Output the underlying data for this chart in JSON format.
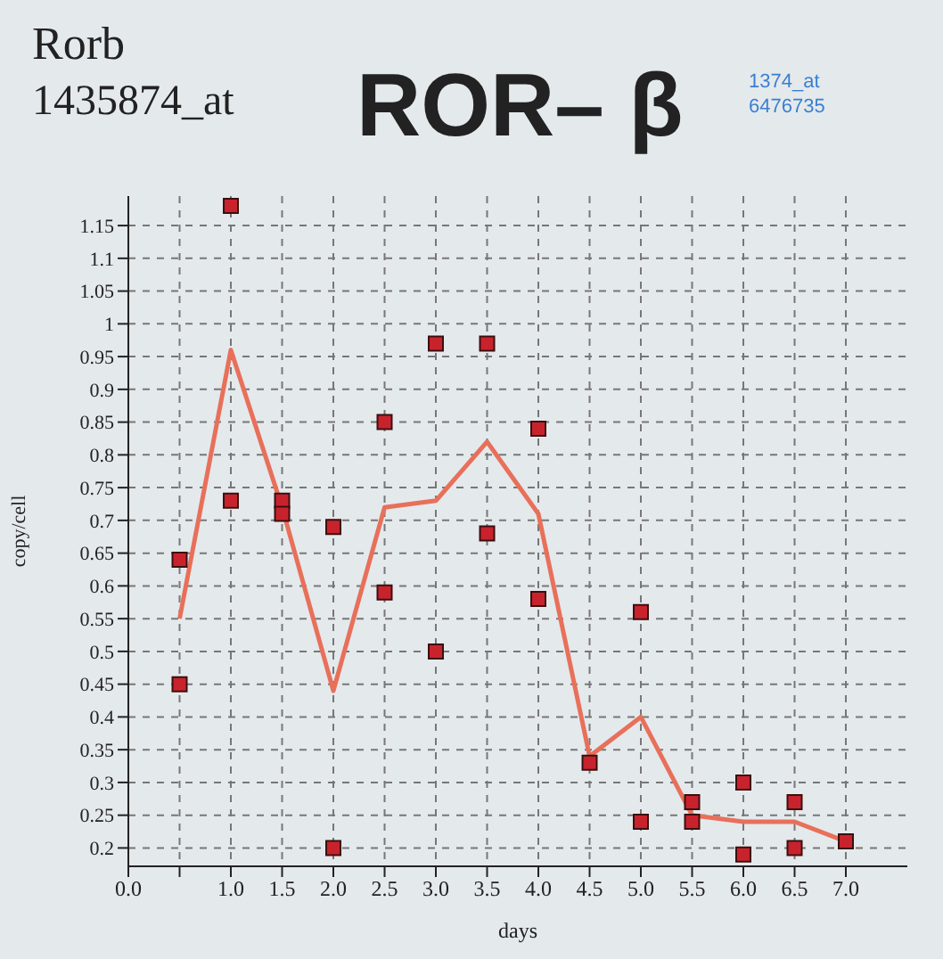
{
  "chart_data": {
    "type": "scatter",
    "title": "ROR– β",
    "subtitle": "Rorb",
    "annotations": [
      "1435874_at",
      "1374_at",
      "6476735"
    ],
    "xlabel": "days",
    "ylabel": "copy/cell",
    "xlim": [
      0,
      7.6
    ],
    "xticks": [
      {
        "value": 0,
        "label": "0.0"
      },
      {
        "value": 0.5,
        "label": null
      },
      {
        "value": 1,
        "label": "1.0"
      },
      {
        "value": 1.5,
        "label": "1.5"
      },
      {
        "value": 2,
        "label": "2.0"
      },
      {
        "value": 2.5,
        "label": "2.5"
      },
      {
        "value": 3,
        "label": "3.0"
      },
      {
        "value": 3.5,
        "label": "3.5"
      },
      {
        "value": 4,
        "label": "4.0"
      },
      {
        "value": 4.5,
        "label": "4.5"
      },
      {
        "value": 5,
        "label": "5.0"
      },
      {
        "value": 5.5,
        "label": "5.5"
      },
      {
        "value": 6,
        "label": "6.0"
      },
      {
        "value": 6.5,
        "label": "6.5"
      },
      {
        "value": 7,
        "label": "7.0"
      }
    ],
    "ylim": [
      0.172,
      1.195
    ],
    "yticks": [
      0.2,
      0.25,
      0.3,
      0.35,
      0.4,
      0.45,
      0.5,
      0.55,
      0.6,
      0.65,
      0.7,
      0.75,
      0.8,
      0.85,
      0.9,
      0.95,
      1,
      1.05,
      1.1,
      1.15
    ],
    "grid": true,
    "series": [
      {
        "color": "#c8232c",
        "marker": "square",
        "x": [
          0.5,
          0.5,
          1,
          1,
          1.5,
          1.5,
          2,
          2,
          2.5,
          2.5,
          3,
          3,
          3.5,
          3.5,
          4,
          4,
          4.5,
          5,
          5,
          5.5,
          5.5,
          6,
          6,
          6.5,
          6.5,
          7
        ],
        "values": [
          0.64,
          0.45,
          1.18,
          0.73,
          0.73,
          0.71,
          0.69,
          0.2,
          0.85,
          0.59,
          0.97,
          0.5,
          0.97,
          0.68,
          0.84,
          0.58,
          0.33,
          0.56,
          0.24,
          0.27,
          0.24,
          0.3,
          0.19,
          0.27,
          0.2,
          0.21
        ]
      },
      {
        "type": "line",
        "color": "#e8705a",
        "marker": "none",
        "x": [
          0.5,
          1,
          1.5,
          2,
          2.5,
          3,
          3.5,
          4,
          4.5,
          5,
          5.5,
          6,
          6.5,
          7
        ],
        "values": [
          0.55,
          0.96,
          0.72,
          0.44,
          0.72,
          0.73,
          0.82,
          0.71,
          0.34,
          0.4,
          0.25,
          0.24,
          0.24,
          0.21
        ]
      }
    ]
  }
}
